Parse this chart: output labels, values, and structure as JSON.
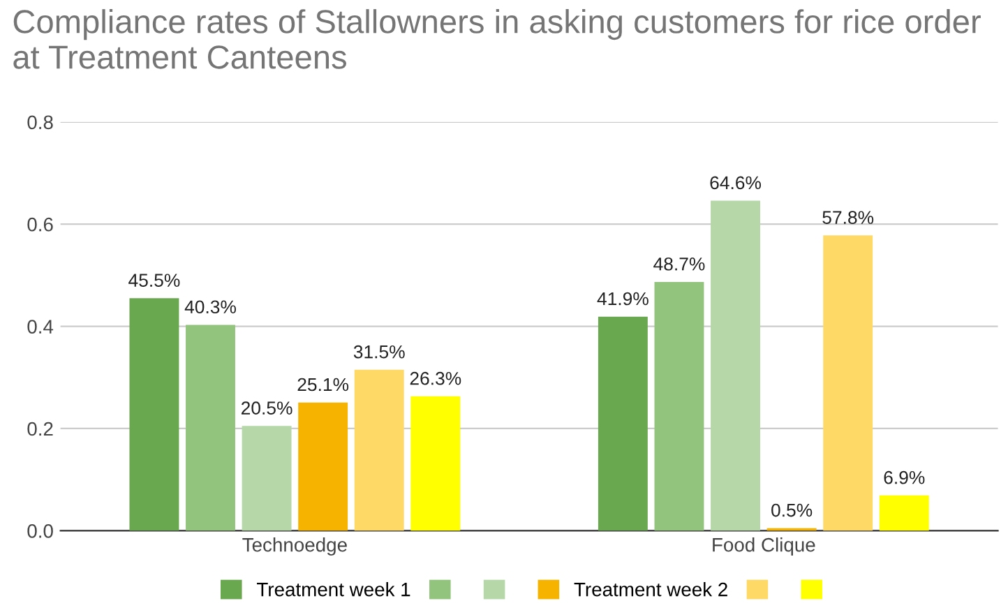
{
  "chart_data": {
    "type": "bar",
    "title": "Compliance rates of Stallowners in asking customers for rice order at Treatment Canteens",
    "categories": [
      "Technoedge",
      "Food Clique"
    ],
    "series": [
      {
        "name": "Treatment week 1",
        "color": "#6aa84f",
        "values": [
          0.455,
          0.419
        ],
        "value_labels": [
          "45.5%",
          "41.9%"
        ]
      },
      {
        "color": "#93c47d",
        "values": [
          0.403,
          0.487
        ],
        "value_labels": [
          "40.3%",
          "48.7%"
        ]
      },
      {
        "color": "#b6d7a8",
        "values": [
          0.205,
          0.646
        ],
        "value_labels": [
          "20.5%",
          "64.6%"
        ]
      },
      {
        "name": "Treatment week 2",
        "color": "#f6b400",
        "values": [
          0.251,
          0.005
        ],
        "value_labels": [
          "25.1%",
          "0.5%"
        ]
      },
      {
        "color": "#ffd966",
        "values": [
          0.315,
          0.578
        ],
        "value_labels": [
          "31.5%",
          "57.8%"
        ]
      },
      {
        "color": "#ffff00",
        "values": [
          0.263,
          0.069
        ],
        "value_labels": [
          "26.3%",
          "6.9%"
        ]
      }
    ],
    "ylim": [
      0,
      0.8
    ],
    "yticks": [
      {
        "value": 0,
        "label": "0.0"
      },
      0.2,
      0.4,
      0.6,
      0.8
    ],
    "grid": "y",
    "legend": "bottom"
  }
}
